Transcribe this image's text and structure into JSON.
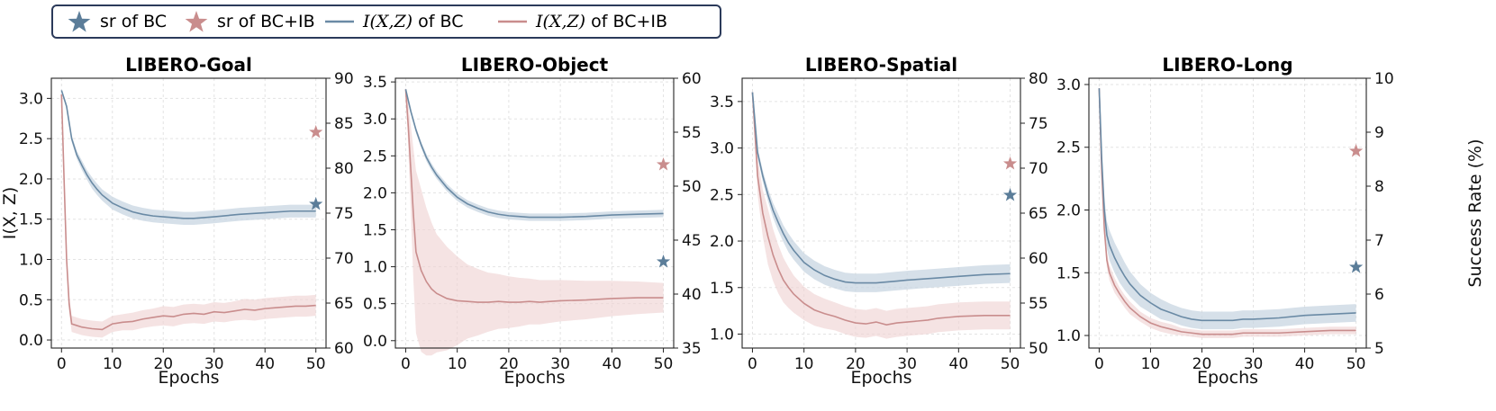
{
  "legend": {
    "items": [
      {
        "marker": "star",
        "color": "#5b7d99",
        "label": "sr of BC"
      },
      {
        "marker": "star",
        "color": "#c98d8d",
        "label": "sr of BC+IB"
      },
      {
        "marker": "line",
        "color": "#6a8aa5",
        "label_math": "I(X,Z)",
        "label_rest": " of BC"
      },
      {
        "marker": "line",
        "color": "#c98d8d",
        "label_math": "I(X,Z)",
        "label_rest": " of BC+IB"
      }
    ]
  },
  "colors": {
    "bc": "#6a8aa5",
    "bc_band": "#c8d5e1",
    "ib": "#c98d8d",
    "ib_band": "#f0d4d4",
    "star_bc": "#5b7d99",
    "star_ib": "#c98d8d"
  },
  "chart_data": [
    {
      "type": "line",
      "title": "LIBERO-Goal",
      "xlabel": "Epochs",
      "ylabel": "I(X, Z)",
      "y2label": "",
      "xlim": [
        -2,
        52
      ],
      "xticks": [
        0,
        10,
        20,
        30,
        40,
        50
      ],
      "ylim": [
        -0.1,
        3.25
      ],
      "yticks": [
        0.0,
        0.5,
        1.0,
        1.5,
        2.0,
        2.5,
        3.0
      ],
      "ytick_labels": [
        "0.0",
        "0.5",
        "1.0",
        "1.5",
        "2.0",
        "2.5",
        "3.0"
      ],
      "y2lim": [
        60,
        90
      ],
      "y2ticks": [
        60,
        65,
        70,
        75,
        80,
        85,
        90
      ],
      "grid": true,
      "series": [
        {
          "name": "I(X,Z) of BC",
          "x": [
            0,
            1,
            2,
            3,
            4,
            5,
            6,
            7,
            8,
            10,
            12,
            14,
            16,
            18,
            20,
            22,
            24,
            26,
            28,
            30,
            35,
            40,
            45,
            50
          ],
          "y": [
            3.1,
            2.9,
            2.5,
            2.3,
            2.17,
            2.05,
            1.95,
            1.87,
            1.8,
            1.7,
            1.64,
            1.59,
            1.56,
            1.54,
            1.53,
            1.52,
            1.51,
            1.51,
            1.52,
            1.53,
            1.56,
            1.58,
            1.6,
            1.6
          ],
          "band": [
            0.02,
            0.03,
            0.04,
            0.05,
            0.06,
            0.06,
            0.07,
            0.07,
            0.07,
            0.08,
            0.08,
            0.08,
            0.08,
            0.08,
            0.08,
            0.08,
            0.08,
            0.08,
            0.08,
            0.08,
            0.08,
            0.08,
            0.08,
            0.08
          ]
        },
        {
          "name": "I(X,Z) of BC+IB",
          "x": [
            0,
            0.5,
            1,
            1.5,
            2,
            3,
            4,
            5,
            6,
            8,
            10,
            12,
            14,
            16,
            18,
            20,
            22,
            24,
            26,
            28,
            30,
            32,
            34,
            36,
            38,
            40,
            42,
            44,
            46,
            48,
            50
          ],
          "y": [
            3.05,
            2.0,
            1.0,
            0.45,
            0.2,
            0.18,
            0.16,
            0.15,
            0.14,
            0.13,
            0.2,
            0.22,
            0.23,
            0.26,
            0.28,
            0.3,
            0.29,
            0.32,
            0.33,
            0.32,
            0.35,
            0.34,
            0.36,
            0.38,
            0.37,
            0.39,
            0.4,
            0.41,
            0.42,
            0.42,
            0.43
          ],
          "band": [
            0.02,
            0.05,
            0.08,
            0.1,
            0.1,
            0.1,
            0.1,
            0.1,
            0.1,
            0.1,
            0.1,
            0.1,
            0.11,
            0.11,
            0.11,
            0.12,
            0.12,
            0.12,
            0.12,
            0.12,
            0.12,
            0.12,
            0.12,
            0.13,
            0.13,
            0.13,
            0.13,
            0.13,
            0.13,
            0.13,
            0.13
          ]
        }
      ],
      "stars": [
        {
          "series": "sr of BC",
          "x": 50,
          "y2": 76.0
        },
        {
          "series": "sr of BC+IB",
          "x": 50,
          "y2": 84.0
        }
      ]
    },
    {
      "type": "line",
      "title": "LIBERO-Object",
      "xlabel": "Epochs",
      "ylabel": "",
      "y2label": "",
      "xlim": [
        -2,
        52
      ],
      "xticks": [
        0,
        10,
        20,
        30,
        40,
        50
      ],
      "ylim": [
        -0.1,
        3.55
      ],
      "yticks": [
        0.0,
        0.5,
        1.0,
        1.5,
        2.0,
        2.5,
        3.0,
        3.5
      ],
      "ytick_labels": [
        "0.0",
        "0.5",
        "1.0",
        "1.5",
        "2.0",
        "2.5",
        "3.0",
        "3.5"
      ],
      "y2lim": [
        35,
        60
      ],
      "y2ticks": [
        35,
        40,
        45,
        50,
        55,
        60
      ],
      "grid": true,
      "series": [
        {
          "name": "I(X,Z) of BC",
          "x": [
            0,
            1,
            2,
            3,
            4,
            5,
            6,
            8,
            10,
            12,
            14,
            16,
            18,
            20,
            22,
            24,
            26,
            28,
            30,
            35,
            40,
            45,
            50
          ],
          "y": [
            3.4,
            3.1,
            2.85,
            2.65,
            2.48,
            2.35,
            2.24,
            2.07,
            1.94,
            1.85,
            1.79,
            1.74,
            1.71,
            1.69,
            1.68,
            1.67,
            1.67,
            1.67,
            1.67,
            1.68,
            1.7,
            1.71,
            1.72
          ],
          "band": [
            0.02,
            0.03,
            0.04,
            0.04,
            0.05,
            0.05,
            0.05,
            0.05,
            0.05,
            0.05,
            0.05,
            0.05,
            0.05,
            0.05,
            0.05,
            0.05,
            0.05,
            0.05,
            0.05,
            0.05,
            0.05,
            0.05,
            0.05
          ]
        },
        {
          "name": "I(X,Z) of BC+IB",
          "x": [
            0,
            0.5,
            1,
            1.5,
            2,
            3,
            4,
            5,
            6,
            8,
            10,
            12,
            14,
            16,
            18,
            20,
            22,
            24,
            26,
            28,
            30,
            35,
            40,
            45,
            50
          ],
          "y": [
            3.4,
            2.9,
            2.3,
            1.7,
            1.2,
            0.95,
            0.8,
            0.7,
            0.64,
            0.57,
            0.54,
            0.53,
            0.52,
            0.52,
            0.53,
            0.52,
            0.52,
            0.53,
            0.52,
            0.53,
            0.54,
            0.55,
            0.57,
            0.58,
            0.58
          ],
          "band": [
            0.03,
            0.3,
            0.6,
            0.9,
            1.1,
            1.1,
            1.0,
            0.9,
            0.8,
            0.7,
            0.6,
            0.5,
            0.45,
            0.4,
            0.37,
            0.35,
            0.33,
            0.31,
            0.3,
            0.29,
            0.28,
            0.26,
            0.24,
            0.22,
            0.2
          ]
        }
      ],
      "stars": [
        {
          "series": "sr of BC",
          "x": 50,
          "y2": 43.0
        },
        {
          "series": "sr of BC+IB",
          "x": 50,
          "y2": 52.0
        }
      ]
    },
    {
      "type": "line",
      "title": "LIBERO-Spatial",
      "xlabel": "Epochs",
      "ylabel": "",
      "y2label": "",
      "xlim": [
        -2,
        52
      ],
      "xticks": [
        0,
        10,
        20,
        30,
        40,
        50
      ],
      "ylim": [
        0.85,
        3.75
      ],
      "yticks": [
        1.0,
        1.5,
        2.0,
        2.5,
        3.0,
        3.5
      ],
      "ytick_labels": [
        "1.0",
        "1.5",
        "2.0",
        "2.5",
        "3.0",
        "3.5"
      ],
      "y2lim": [
        50,
        80
      ],
      "y2ticks": [
        50,
        55,
        60,
        65,
        70,
        75,
        80
      ],
      "grid": true,
      "series": [
        {
          "name": "I(X,Z) of BC",
          "x": [
            0,
            1,
            2,
            3,
            4,
            5,
            6,
            7,
            8,
            10,
            12,
            14,
            16,
            18,
            20,
            22,
            24,
            26,
            28,
            30,
            35,
            40,
            45,
            50
          ],
          "y": [
            3.6,
            2.95,
            2.7,
            2.5,
            2.33,
            2.2,
            2.08,
            1.98,
            1.9,
            1.77,
            1.69,
            1.63,
            1.59,
            1.56,
            1.55,
            1.55,
            1.55,
            1.56,
            1.57,
            1.58,
            1.6,
            1.62,
            1.64,
            1.65
          ],
          "band": [
            0.03,
            0.05,
            0.06,
            0.07,
            0.08,
            0.09,
            0.09,
            0.1,
            0.1,
            0.1,
            0.1,
            0.1,
            0.1,
            0.1,
            0.1,
            0.1,
            0.1,
            0.1,
            0.1,
            0.1,
            0.1,
            0.1,
            0.1,
            0.1
          ]
        },
        {
          "name": "I(X,Z) of BC+IB",
          "x": [
            0,
            1,
            2,
            3,
            4,
            5,
            6,
            7,
            8,
            10,
            12,
            14,
            16,
            18,
            20,
            22,
            24,
            26,
            28,
            30,
            32,
            34,
            36,
            38,
            40,
            45,
            50
          ],
          "y": [
            3.6,
            2.7,
            2.3,
            2.05,
            1.85,
            1.7,
            1.58,
            1.5,
            1.43,
            1.33,
            1.26,
            1.22,
            1.19,
            1.15,
            1.12,
            1.11,
            1.13,
            1.1,
            1.12,
            1.13,
            1.14,
            1.15,
            1.17,
            1.18,
            1.19,
            1.2,
            1.2
          ],
          "band": [
            0.03,
            0.2,
            0.25,
            0.3,
            0.28,
            0.26,
            0.24,
            0.22,
            0.2,
            0.18,
            0.17,
            0.16,
            0.15,
            0.15,
            0.15,
            0.15,
            0.15,
            0.15,
            0.15,
            0.15,
            0.15,
            0.15,
            0.15,
            0.15,
            0.15,
            0.15,
            0.15
          ]
        }
      ],
      "stars": [
        {
          "series": "sr of BC",
          "x": 50,
          "y2": 67.0
        },
        {
          "series": "sr of BC+IB",
          "x": 50,
          "y2": 70.5
        }
      ]
    },
    {
      "type": "line",
      "title": "LIBERO-Long",
      "xlabel": "Epochs",
      "ylabel": "",
      "y2label": "Success Rate (%)",
      "xlim": [
        -2,
        52
      ],
      "xticks": [
        0,
        10,
        20,
        30,
        40,
        50
      ],
      "ylim": [
        0.9,
        3.05
      ],
      "yticks": [
        1.0,
        1.5,
        2.0,
        2.5,
        3.0
      ],
      "ytick_labels": [
        "1.0",
        "1.5",
        "2.0",
        "2.5",
        "3.0"
      ],
      "y2lim": [
        5,
        10
      ],
      "y2ticks": [
        5,
        6,
        7,
        8,
        9,
        10
      ],
      "grid": true,
      "series": [
        {
          "name": "I(X,Z) of BC",
          "x": [
            0,
            0.5,
            1,
            1.5,
            2,
            3,
            4,
            5,
            6,
            8,
            10,
            12,
            14,
            16,
            18,
            20,
            22,
            24,
            26,
            28,
            30,
            35,
            40,
            45,
            50
          ],
          "y": [
            2.97,
            2.4,
            2.0,
            1.8,
            1.72,
            1.62,
            1.54,
            1.47,
            1.41,
            1.32,
            1.26,
            1.21,
            1.18,
            1.15,
            1.13,
            1.12,
            1.12,
            1.12,
            1.12,
            1.13,
            1.13,
            1.14,
            1.16,
            1.17,
            1.18
          ],
          "band": [
            0.02,
            0.08,
            0.1,
            0.11,
            0.12,
            0.12,
            0.12,
            0.11,
            0.1,
            0.09,
            0.08,
            0.08,
            0.07,
            0.07,
            0.07,
            0.07,
            0.07,
            0.07,
            0.07,
            0.07,
            0.07,
            0.07,
            0.07,
            0.07,
            0.07
          ]
        },
        {
          "name": "I(X,Z) of BC+IB",
          "x": [
            0,
            0.5,
            1,
            1.5,
            2,
            3,
            4,
            5,
            6,
            8,
            10,
            12,
            14,
            16,
            18,
            20,
            22,
            24,
            26,
            28,
            30,
            35,
            40,
            45,
            50
          ],
          "y": [
            2.97,
            2.3,
            1.85,
            1.6,
            1.5,
            1.4,
            1.33,
            1.27,
            1.22,
            1.15,
            1.1,
            1.07,
            1.05,
            1.03,
            1.02,
            1.01,
            1.01,
            1.01,
            1.01,
            1.02,
            1.02,
            1.02,
            1.03,
            1.04,
            1.04
          ],
          "band": [
            0.02,
            0.05,
            0.06,
            0.06,
            0.06,
            0.06,
            0.05,
            0.05,
            0.05,
            0.04,
            0.04,
            0.04,
            0.04,
            0.03,
            0.03,
            0.03,
            0.03,
            0.03,
            0.03,
            0.03,
            0.03,
            0.03,
            0.03,
            0.03,
            0.03
          ]
        }
      ],
      "stars": [
        {
          "series": "sr of BC",
          "x": 50,
          "y2": 6.5
        },
        {
          "series": "sr of BC+IB",
          "x": 50,
          "y2": 8.65
        }
      ]
    }
  ]
}
